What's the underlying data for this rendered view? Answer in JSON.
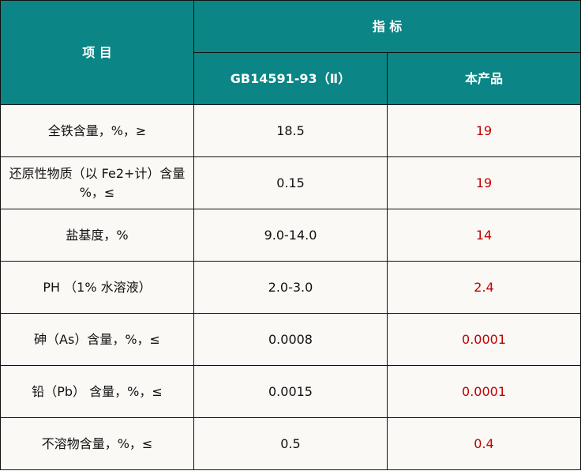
{
  "header": {
    "item": "项 目",
    "indicator": "指 标",
    "standard": "GB14591-93（Ⅱ）",
    "product": "本产品"
  },
  "colors": {
    "header_bg": "#0b8585",
    "product_value": "#c00000",
    "cell_bg": "#faf9f5"
  },
  "rows": [
    {
      "item": "全铁含量，%，≥",
      "standard": "18.5",
      "product": "19"
    },
    {
      "item": "还原性物质（以 Fe2+计）含量 %，≤",
      "standard": "0.15",
      "product": "19"
    },
    {
      "item": "盐基度，%",
      "standard": "9.0-14.0",
      "product": "14"
    },
    {
      "item": "PH （1% 水溶液）",
      "standard": "2.0-3.0",
      "product": "2.4"
    },
    {
      "item": "砷（As）含量，%，≤",
      "standard": "0.0008",
      "product": "0.0001"
    },
    {
      "item": "铅（Pb） 含量，%，≤",
      "standard": "0.0015",
      "product": "0.0001"
    },
    {
      "item": "不溶物含量，%，≤",
      "standard": "0.5",
      "product": "0.4"
    }
  ]
}
